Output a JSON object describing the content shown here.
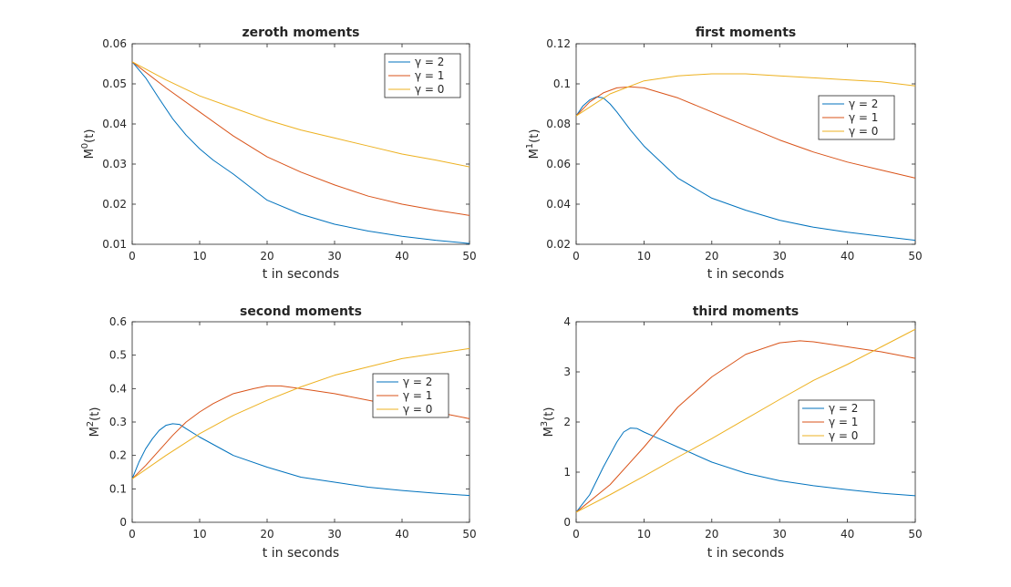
{
  "figure": {
    "background": "#ffffff",
    "axis_color": "#262626",
    "series_colors": [
      "#0072bd",
      "#d95319",
      "#edb120"
    ]
  },
  "chart_data": [
    {
      "type": "line",
      "title": "zeroth moments",
      "xlabel": "t in seconds",
      "ylabel": "M0(t)",
      "ylabel_base": "M",
      "ylabel_sup": "0",
      "ylabel_tail": "(t)",
      "xlim": [
        0,
        50
      ],
      "ylim": [
        0.01,
        0.06
      ],
      "xticks": [
        0,
        10,
        20,
        30,
        40,
        50
      ],
      "yticks": [
        0.01,
        0.02,
        0.03,
        0.04,
        0.05,
        0.06
      ],
      "ytick_labels": [
        "0.01",
        "0.02",
        "0.03",
        "0.04",
        "0.05",
        "0.06"
      ],
      "legend_position": "top-right",
      "series": [
        {
          "name": "γ = 2",
          "x": [
            0,
            2,
            4,
            6,
            8,
            10,
            12,
            15,
            20,
            25,
            30,
            35,
            40,
            45,
            50
          ],
          "y": [
            0.0555,
            0.0515,
            0.0463,
            0.0413,
            0.0372,
            0.0338,
            0.031,
            0.0275,
            0.021,
            0.0175,
            0.015,
            0.0133,
            0.012,
            0.011,
            0.0102
          ]
        },
        {
          "name": "γ = 1",
          "x": [
            0,
            5,
            10,
            15,
            20,
            25,
            30,
            35,
            40,
            45,
            50
          ],
          "y": [
            0.0555,
            0.049,
            0.043,
            0.037,
            0.0318,
            0.028,
            0.0248,
            0.022,
            0.02,
            0.0185,
            0.0172
          ]
        },
        {
          "name": "γ = 0",
          "x": [
            0,
            5,
            10,
            15,
            20,
            25,
            30,
            35,
            40,
            45,
            50
          ],
          "y": [
            0.0555,
            0.051,
            0.047,
            0.044,
            0.041,
            0.0385,
            0.0365,
            0.0345,
            0.0325,
            0.031,
            0.0293
          ]
        }
      ]
    },
    {
      "type": "line",
      "title": "first moments",
      "xlabel": "t in seconds",
      "ylabel": "M1(t)",
      "ylabel_base": "M",
      "ylabel_sup": "1",
      "ylabel_tail": "(t)",
      "xlim": [
        0,
        50
      ],
      "ylim": [
        0.02,
        0.12
      ],
      "xticks": [
        0,
        10,
        20,
        30,
        40,
        50
      ],
      "yticks": [
        0.02,
        0.04,
        0.06,
        0.08,
        0.1,
        0.12
      ],
      "ytick_labels": [
        "0.02",
        "0.04",
        "0.06",
        "0.08",
        "0.1",
        "0.12"
      ],
      "legend_position": "right",
      "series": [
        {
          "name": "γ = 2",
          "x": [
            0,
            1,
            2,
            3,
            4,
            5,
            6,
            8,
            10,
            15,
            20,
            25,
            30,
            35,
            40,
            45,
            50
          ],
          "y": [
            0.084,
            0.089,
            0.092,
            0.0935,
            0.093,
            0.09,
            0.086,
            0.077,
            0.069,
            0.053,
            0.043,
            0.037,
            0.032,
            0.0285,
            0.026,
            0.024,
            0.022
          ]
        },
        {
          "name": "γ = 1",
          "x": [
            0,
            2,
            4,
            6,
            8,
            10,
            15,
            20,
            25,
            30,
            35,
            40,
            45,
            50
          ],
          "y": [
            0.084,
            0.091,
            0.0955,
            0.098,
            0.0985,
            0.098,
            0.093,
            0.086,
            0.079,
            0.072,
            0.066,
            0.061,
            0.057,
            0.053
          ]
        },
        {
          "name": "γ = 0",
          "x": [
            0,
            5,
            10,
            15,
            20,
            25,
            30,
            35,
            40,
            45,
            50
          ],
          "y": [
            0.084,
            0.095,
            0.1015,
            0.104,
            0.105,
            0.105,
            0.104,
            0.103,
            0.102,
            0.101,
            0.099
          ]
        }
      ]
    },
    {
      "type": "line",
      "title": "second moments",
      "xlabel": "t in seconds",
      "ylabel": "M2(t)",
      "ylabel_base": "M",
      "ylabel_sup": "2",
      "ylabel_tail": "(t)",
      "xlim": [
        0,
        50
      ],
      "ylim": [
        0,
        0.6
      ],
      "xticks": [
        0,
        10,
        20,
        30,
        40,
        50
      ],
      "yticks": [
        0,
        0.1,
        0.2,
        0.3,
        0.4,
        0.5,
        0.6
      ],
      "ytick_labels": [
        "0",
        "0.1",
        "0.2",
        "0.3",
        "0.4",
        "0.5",
        "0.6"
      ],
      "legend_position": "right",
      "series": [
        {
          "name": "γ = 2",
          "x": [
            0,
            1,
            2,
            3,
            4,
            5,
            6,
            7,
            8,
            10,
            15,
            20,
            25,
            30,
            35,
            40,
            45,
            50
          ],
          "y": [
            0.13,
            0.18,
            0.22,
            0.25,
            0.275,
            0.29,
            0.295,
            0.293,
            0.28,
            0.255,
            0.2,
            0.165,
            0.135,
            0.12,
            0.105,
            0.095,
            0.087,
            0.08
          ]
        },
        {
          "name": "γ = 1",
          "x": [
            0,
            2,
            4,
            6,
            8,
            10,
            12,
            15,
            18,
            20,
            22,
            25,
            30,
            35,
            40,
            45,
            50
          ],
          "y": [
            0.13,
            0.17,
            0.215,
            0.26,
            0.3,
            0.33,
            0.355,
            0.385,
            0.4,
            0.408,
            0.408,
            0.4,
            0.385,
            0.365,
            0.345,
            0.33,
            0.31
          ]
        },
        {
          "name": "γ = 0",
          "x": [
            0,
            5,
            10,
            15,
            20,
            25,
            30,
            35,
            40,
            45,
            50
          ],
          "y": [
            0.13,
            0.2,
            0.265,
            0.32,
            0.365,
            0.405,
            0.44,
            0.465,
            0.49,
            0.505,
            0.52
          ]
        }
      ]
    },
    {
      "type": "line",
      "title": "third moments",
      "xlabel": "t in seconds",
      "ylabel": "M3(t)",
      "ylabel_base": "M",
      "ylabel_sup": "3",
      "ylabel_tail": "(t)",
      "xlim": [
        0,
        50
      ],
      "ylim": [
        0,
        4
      ],
      "xticks": [
        0,
        10,
        20,
        30,
        40,
        50
      ],
      "yticks": [
        0,
        1,
        2,
        3,
        4
      ],
      "ytick_labels": [
        "0",
        "1",
        "2",
        "3",
        "4"
      ],
      "legend_position": "center-right",
      "series": [
        {
          "name": "γ = 2",
          "x": [
            0,
            2,
            4,
            6,
            7,
            8,
            9,
            10,
            12,
            15,
            20,
            25,
            30,
            35,
            40,
            45,
            50
          ],
          "y": [
            0.2,
            0.55,
            1.1,
            1.6,
            1.8,
            1.88,
            1.87,
            1.8,
            1.68,
            1.5,
            1.2,
            0.98,
            0.83,
            0.73,
            0.65,
            0.58,
            0.53
          ]
        },
        {
          "name": "γ = 1",
          "x": [
            0,
            5,
            10,
            15,
            20,
            25,
            30,
            33,
            35,
            40,
            45,
            50
          ],
          "y": [
            0.2,
            0.75,
            1.5,
            2.3,
            2.9,
            3.35,
            3.58,
            3.62,
            3.6,
            3.5,
            3.4,
            3.27
          ]
        },
        {
          "name": "γ = 0",
          "x": [
            0,
            5,
            10,
            15,
            20,
            25,
            30,
            35,
            40,
            45,
            50
          ],
          "y": [
            0.2,
            0.55,
            0.92,
            1.3,
            1.67,
            2.06,
            2.45,
            2.83,
            3.15,
            3.5,
            3.85
          ]
        }
      ]
    }
  ]
}
